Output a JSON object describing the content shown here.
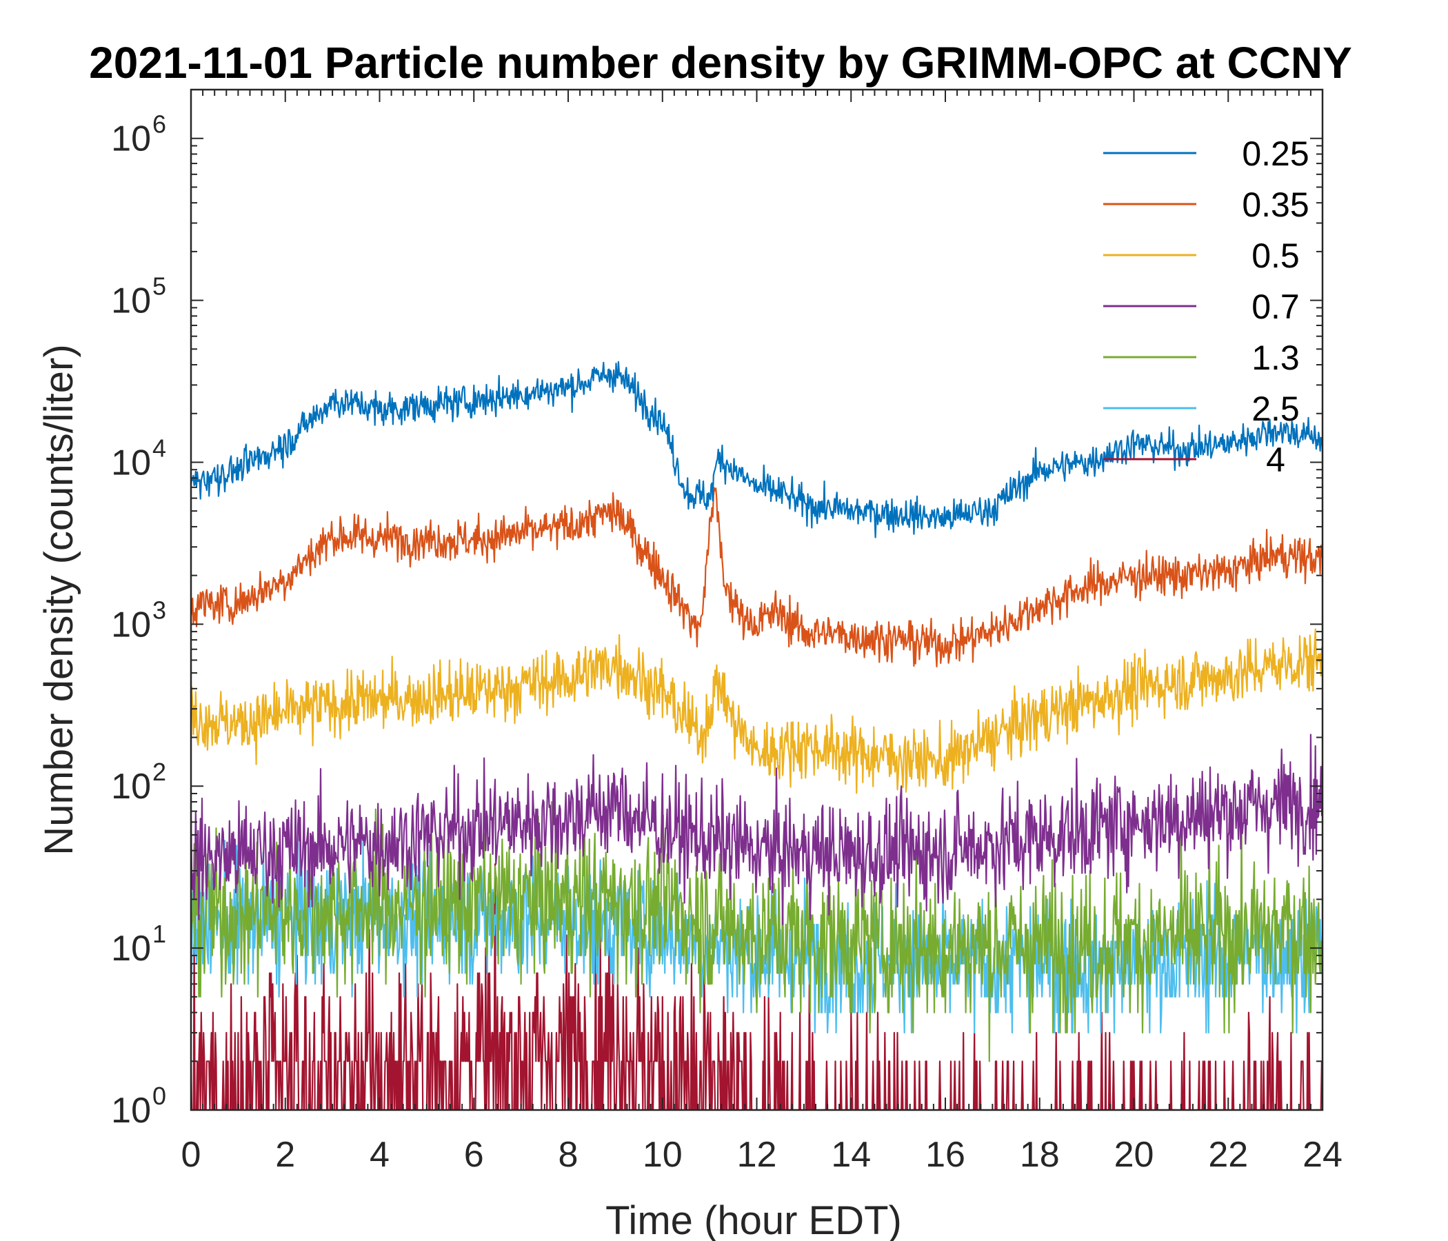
{
  "chart_data": {
    "type": "line",
    "title": "2021-11-01 Particle number density by GRIMM-OPC at CCNY",
    "xlabel": "Time (hour EDT)",
    "ylabel": "Number density (counts/liter)",
    "xlim": [
      0,
      24
    ],
    "ylim": [
      1,
      2000000
    ],
    "yscale": "log",
    "x_ticks": [
      "0",
      "2",
      "4",
      "6",
      "8",
      "10",
      "12",
      "14",
      "16",
      "18",
      "20",
      "22",
      "24"
    ],
    "y_ticks": [
      {
        "base": "10",
        "exp": "0"
      },
      {
        "base": "10",
        "exp": "1"
      },
      {
        "base": "10",
        "exp": "2"
      },
      {
        "base": "10",
        "exp": "3"
      },
      {
        "base": "10",
        "exp": "4"
      },
      {
        "base": "10",
        "exp": "5"
      },
      {
        "base": "10",
        "exp": "6"
      }
    ],
    "legend_position": "top-right",
    "series": [
      {
        "name": "0.25",
        "color": "#0072BD",
        "noise": 0.16,
        "x": [
          0,
          1,
          2,
          3,
          3.5,
          4,
          6,
          8,
          9,
          10,
          10.5,
          11,
          11.2,
          11.5,
          12,
          12.5,
          13,
          14,
          15,
          16,
          17,
          18,
          19,
          20,
          21,
          22,
          23,
          24
        ],
        "y": [
          7500,
          9000,
          13000,
          24000,
          23000,
          21000,
          24000,
          29000,
          36000,
          18000,
          6500,
          6000,
          11000,
          9000,
          7000,
          6500,
          5500,
          5000,
          4800,
          4500,
          5200,
          9000,
          10000,
          13000,
          12000,
          13000,
          16000,
          14000
        ]
      },
      {
        "name": "0.35",
        "color": "#D95319",
        "noise": 0.2,
        "x": [
          0,
          1,
          2,
          3,
          4,
          6,
          8,
          9,
          10,
          10.5,
          10.8,
          11.1,
          11.3,
          11.6,
          12,
          12.4,
          13,
          14,
          15,
          16,
          17,
          18,
          19,
          20,
          21,
          22,
          23,
          24
        ],
        "y": [
          1300,
          1350,
          1900,
          3500,
          3400,
          3300,
          4000,
          5000,
          2000,
          1200,
          900,
          7500,
          1800,
          1200,
          1000,
          1200,
          900,
          850,
          800,
          750,
          900,
          1300,
          1700,
          2000,
          2000,
          2100,
          2700,
          2500
        ]
      },
      {
        "name": "0.5",
        "color": "#EDB120",
        "noise": 0.3,
        "x": [
          0,
          1,
          2,
          3,
          4,
          6,
          8,
          9,
          10,
          10.8,
          11.2,
          11.5,
          12,
          13,
          14,
          15,
          16,
          17,
          18,
          19,
          20,
          21,
          22,
          23,
          24
        ],
        "y": [
          270,
          240,
          280,
          320,
          340,
          380,
          460,
          580,
          380,
          200,
          450,
          250,
          160,
          180,
          160,
          150,
          140,
          200,
          270,
          330,
          400,
          450,
          480,
          560,
          600
        ]
      },
      {
        "name": "0.7",
        "color": "#7E2F8E",
        "noise": 0.5,
        "x": [
          0,
          2,
          4,
          6,
          8,
          9,
          10,
          12,
          14,
          16,
          18,
          20,
          22,
          24
        ],
        "y": [
          35,
          40,
          45,
          55,
          65,
          75,
          55,
          40,
          38,
          40,
          48,
          60,
          70,
          85
        ]
      },
      {
        "name": "1.3",
        "color": "#77AC30",
        "noise": 0.7,
        "x": [
          0,
          4,
          8,
          10,
          12,
          16,
          20,
          24
        ],
        "y": [
          16,
          18,
          20,
          18,
          12,
          10,
          11,
          13
        ]
      },
      {
        "name": "2.5",
        "color": "#4DBEEE",
        "noise": 0.6,
        "x": [
          0,
          4,
          8,
          10,
          12,
          16,
          20,
          24
        ],
        "y": [
          14,
          15,
          15,
          13,
          9,
          8,
          8,
          10
        ]
      },
      {
        "name": "4",
        "color": "#A2142F",
        "noise": 1.1,
        "x": [
          0,
          4,
          8,
          9,
          10,
          12,
          16,
          20,
          24
        ],
        "y": [
          1.2,
          1.6,
          2.2,
          2.8,
          1.6,
          0.9,
          0.6,
          0.6,
          0.8
        ]
      }
    ]
  }
}
